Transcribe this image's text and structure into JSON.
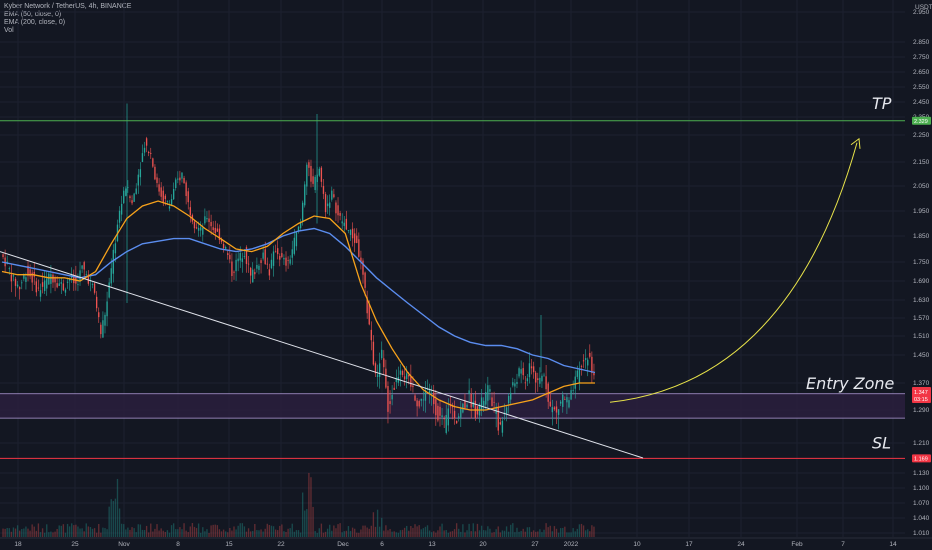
{
  "header": {
    "symbol_line": "Kyber Network / TetherUS, 4h, BINANCE",
    "indicators": [
      "EMA (50, close, 0)",
      "EMA (200, close, 0)",
      "Vol"
    ]
  },
  "colors": {
    "background": "#131722",
    "candle_up": "#26a69a",
    "candle_down": "#ef5350",
    "ema50": "#f7a21b",
    "ema200": "#5b8def",
    "trendline": "#e0e3eb",
    "tp_line": "#4caf50",
    "sl_line": "#f23645",
    "entry_zone_border": "#b39ddb",
    "entry_zone_fill": "#2a1f3d",
    "arrow": "#e8e34a"
  },
  "chart_data": {
    "type": "candlestick",
    "title": "Kyber Network / TetherUS, 4h, BINANCE",
    "y_axis_unit": "USDT",
    "ylim": [
      1.0,
      3.06
    ],
    "y_ticks": [
      "2.950",
      "2.850",
      "2.750",
      "2.650",
      "2.550",
      "2.450",
      "2.350",
      "2.250",
      "2.150",
      "2.050",
      "1.950",
      "1.850",
      "1.750",
      "1.690",
      "1.630",
      "1.570",
      "1.510",
      "1.450",
      "1.370",
      "1.290",
      "1.210",
      "1.130",
      "1.100",
      "1.070",
      "1.040",
      "1.010"
    ],
    "x_ticks": [
      "18",
      "25",
      "Nov",
      "8",
      "15",
      "22",
      "Dec",
      "6",
      "13",
      "20",
      "27",
      "2022",
      "10",
      "17",
      "24",
      "Feb",
      "7",
      "14"
    ],
    "price_path": [
      1.78,
      1.74,
      1.69,
      1.67,
      1.72,
      1.7,
      1.66,
      1.68,
      1.71,
      1.69,
      1.67,
      1.7,
      1.68,
      1.73,
      1.7,
      1.65,
      1.52,
      1.62,
      1.78,
      1.95,
      2.05,
      1.98,
      2.1,
      2.22,
      2.18,
      2.05,
      2.0,
      1.97,
      2.06,
      2.1,
      1.98,
      1.9,
      1.87,
      1.93,
      1.88,
      1.85,
      1.8,
      1.72,
      1.76,
      1.79,
      1.7,
      1.74,
      1.78,
      1.72,
      1.8,
      1.76,
      1.74,
      1.83,
      1.9,
      2.15,
      2.05,
      2.12,
      1.96,
      2.02,
      1.93,
      1.9,
      1.86,
      1.82,
      1.7,
      1.55,
      1.38,
      1.45,
      1.3,
      1.36,
      1.42,
      1.38,
      1.35,
      1.3,
      1.35,
      1.33,
      1.28,
      1.25,
      1.31,
      1.27,
      1.3,
      1.33,
      1.29,
      1.31,
      1.35,
      1.3,
      1.24,
      1.31,
      1.36,
      1.4,
      1.38,
      1.42,
      1.36,
      1.4,
      1.3,
      1.28,
      1.33,
      1.31,
      1.37,
      1.42,
      1.45,
      1.4
    ],
    "ema50": [
      1.72,
      1.71,
      1.71,
      1.7,
      1.7,
      1.69,
      1.72,
      1.82,
      1.92,
      1.97,
      1.99,
      1.97,
      1.93,
      1.88,
      1.84,
      1.8,
      1.79,
      1.81,
      1.86,
      1.9,
      1.93,
      1.92,
      1.86,
      1.68,
      1.56,
      1.47,
      1.4,
      1.35,
      1.32,
      1.3,
      1.29,
      1.29,
      1.3,
      1.31,
      1.32,
      1.34,
      1.36,
      1.37,
      1.37
    ],
    "ema200": [
      1.75,
      1.74,
      1.73,
      1.72,
      1.71,
      1.7,
      1.71,
      1.75,
      1.79,
      1.82,
      1.83,
      1.84,
      1.84,
      1.82,
      1.8,
      1.79,
      1.8,
      1.82,
      1.85,
      1.87,
      1.88,
      1.86,
      1.81,
      1.75,
      1.7,
      1.66,
      1.62,
      1.58,
      1.54,
      1.51,
      1.49,
      1.48,
      1.48,
      1.47,
      1.45,
      1.44,
      1.42,
      1.41,
      1.4
    ],
    "levels": {
      "tp": {
        "label": "TP",
        "price": 2.329,
        "badge": "2.329"
      },
      "sl": {
        "label": "SL",
        "price": 1.169,
        "badge": "1.169"
      },
      "entry_zone": {
        "label": "Entry Zone",
        "top": 1.35,
        "bottom": 1.28,
        "badge_price": "1.347",
        "badge_time": "03:15"
      }
    },
    "volume": "bars at bottom, spikes near Nov and late Nov"
  },
  "annotations": {
    "tp": "TP",
    "sl": "SL",
    "entry": "Entry Zone"
  }
}
